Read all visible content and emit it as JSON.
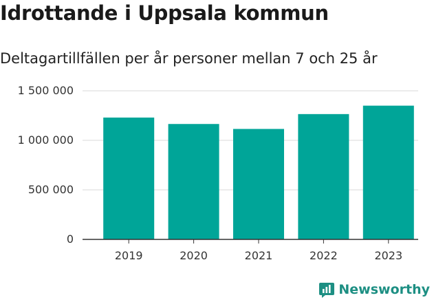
{
  "title": "Idrottande i Uppsala kommun",
  "subtitle": "Deltagartillfällen per år personer mellan 7 och 25 år",
  "brand": "Newsworthy",
  "colors": {
    "bar": "#00a598",
    "grid": "#d9d9d9",
    "axis": "#333333",
    "brand": "#1d8f83"
  },
  "chart_data": {
    "type": "bar",
    "categories": [
      "2019",
      "2020",
      "2021",
      "2022",
      "2023"
    ],
    "values": [
      1230000,
      1165000,
      1115000,
      1265000,
      1350000
    ],
    "yticks": [
      0,
      500000,
      1000000,
      1500000
    ],
    "ytick_labels": [
      "0",
      "500 000",
      "1 000 000",
      "1 500 000"
    ],
    "ylim": [
      0,
      1500000
    ],
    "grid": true,
    "legend": "none"
  }
}
